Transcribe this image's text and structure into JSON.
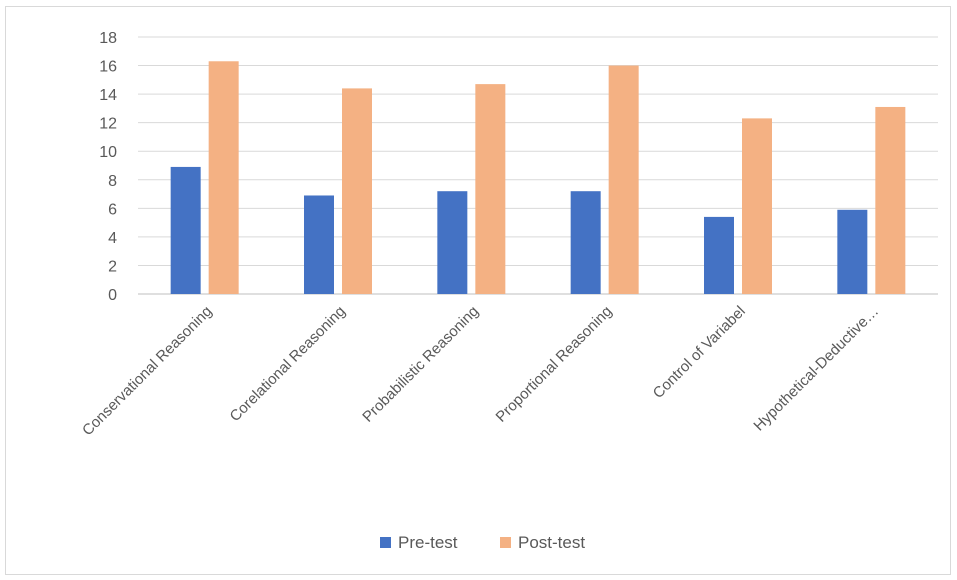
{
  "chart_data": {
    "type": "bar",
    "categories": [
      "Conservational Reasoning",
      "Corelational Reasoning",
      "Probabilistic Reasoning",
      "Proportional Reasoning",
      "Control of Variabel",
      "Hypothetical-Deductive…"
    ],
    "series": [
      {
        "name": "Pre-test",
        "color": "#4472c4",
        "values": [
          8.9,
          6.9,
          7.2,
          7.2,
          5.4,
          5.9
        ]
      },
      {
        "name": "Post-test",
        "color": "#f4b183",
        "values": [
          16.3,
          14.4,
          14.7,
          16.0,
          12.3,
          13.1
        ]
      }
    ],
    "ylim": [
      0,
      18
    ],
    "yticks": [
      0,
      2,
      4,
      6,
      8,
      10,
      12,
      14,
      16,
      18
    ],
    "grid": true,
    "legend": "bottom-center",
    "title": "",
    "xlabel": "",
    "ylabel": ""
  }
}
